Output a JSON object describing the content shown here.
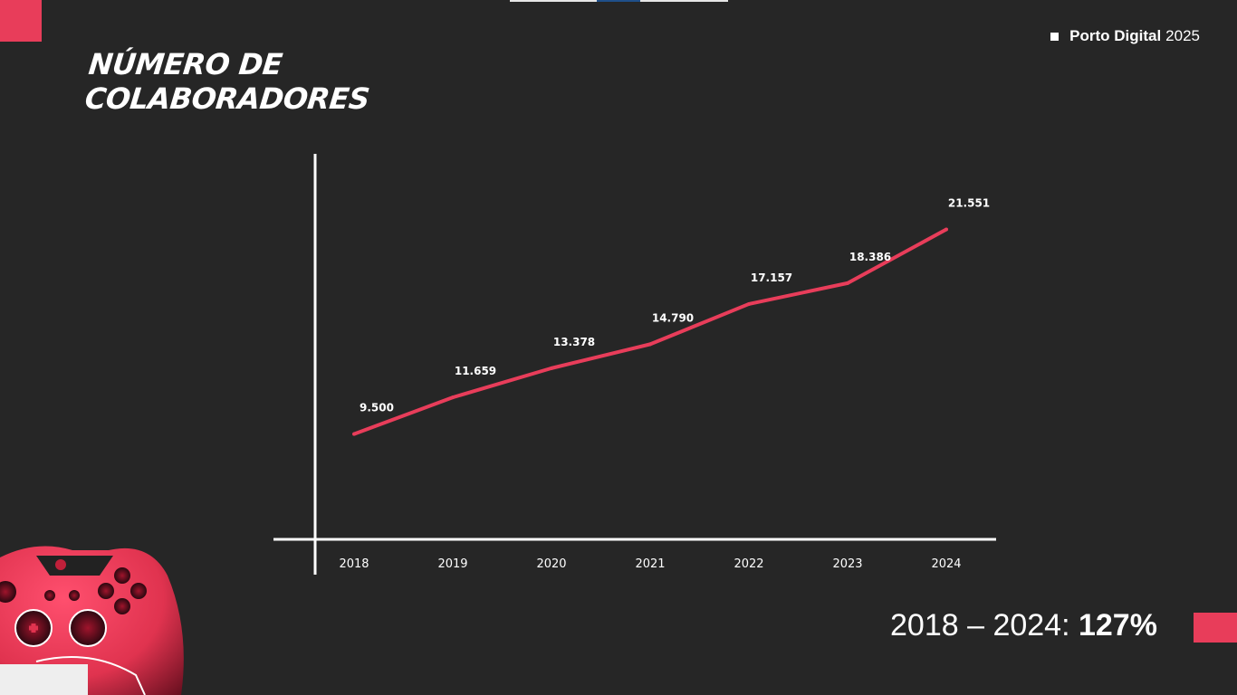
{
  "header": {
    "brand_bold": "Porto Digital",
    "brand_year": "2025"
  },
  "title": "Número de colaboradores",
  "summary": {
    "range": "2018 – 2024:",
    "growth": "127%"
  },
  "chart_data": {
    "type": "line",
    "title": "",
    "xlabel": "",
    "ylabel": "",
    "categories": [
      "2018",
      "2019",
      "2020",
      "2021",
      "2022",
      "2023",
      "2024"
    ],
    "values": [
      9500,
      11659,
      13378,
      14790,
      17157,
      18386,
      21551
    ],
    "value_labels": [
      "9.500",
      "11.659",
      "13.378",
      "14.790",
      "17.157",
      "18.386",
      "21.551"
    ],
    "ylim": [
      3300,
      26000
    ],
    "line_color": "#e83d5a",
    "axis_color": "#ffffff",
    "grid": false
  },
  "colors": {
    "accent": "#e83d5a",
    "background": "#262626",
    "text": "#ffffff"
  }
}
